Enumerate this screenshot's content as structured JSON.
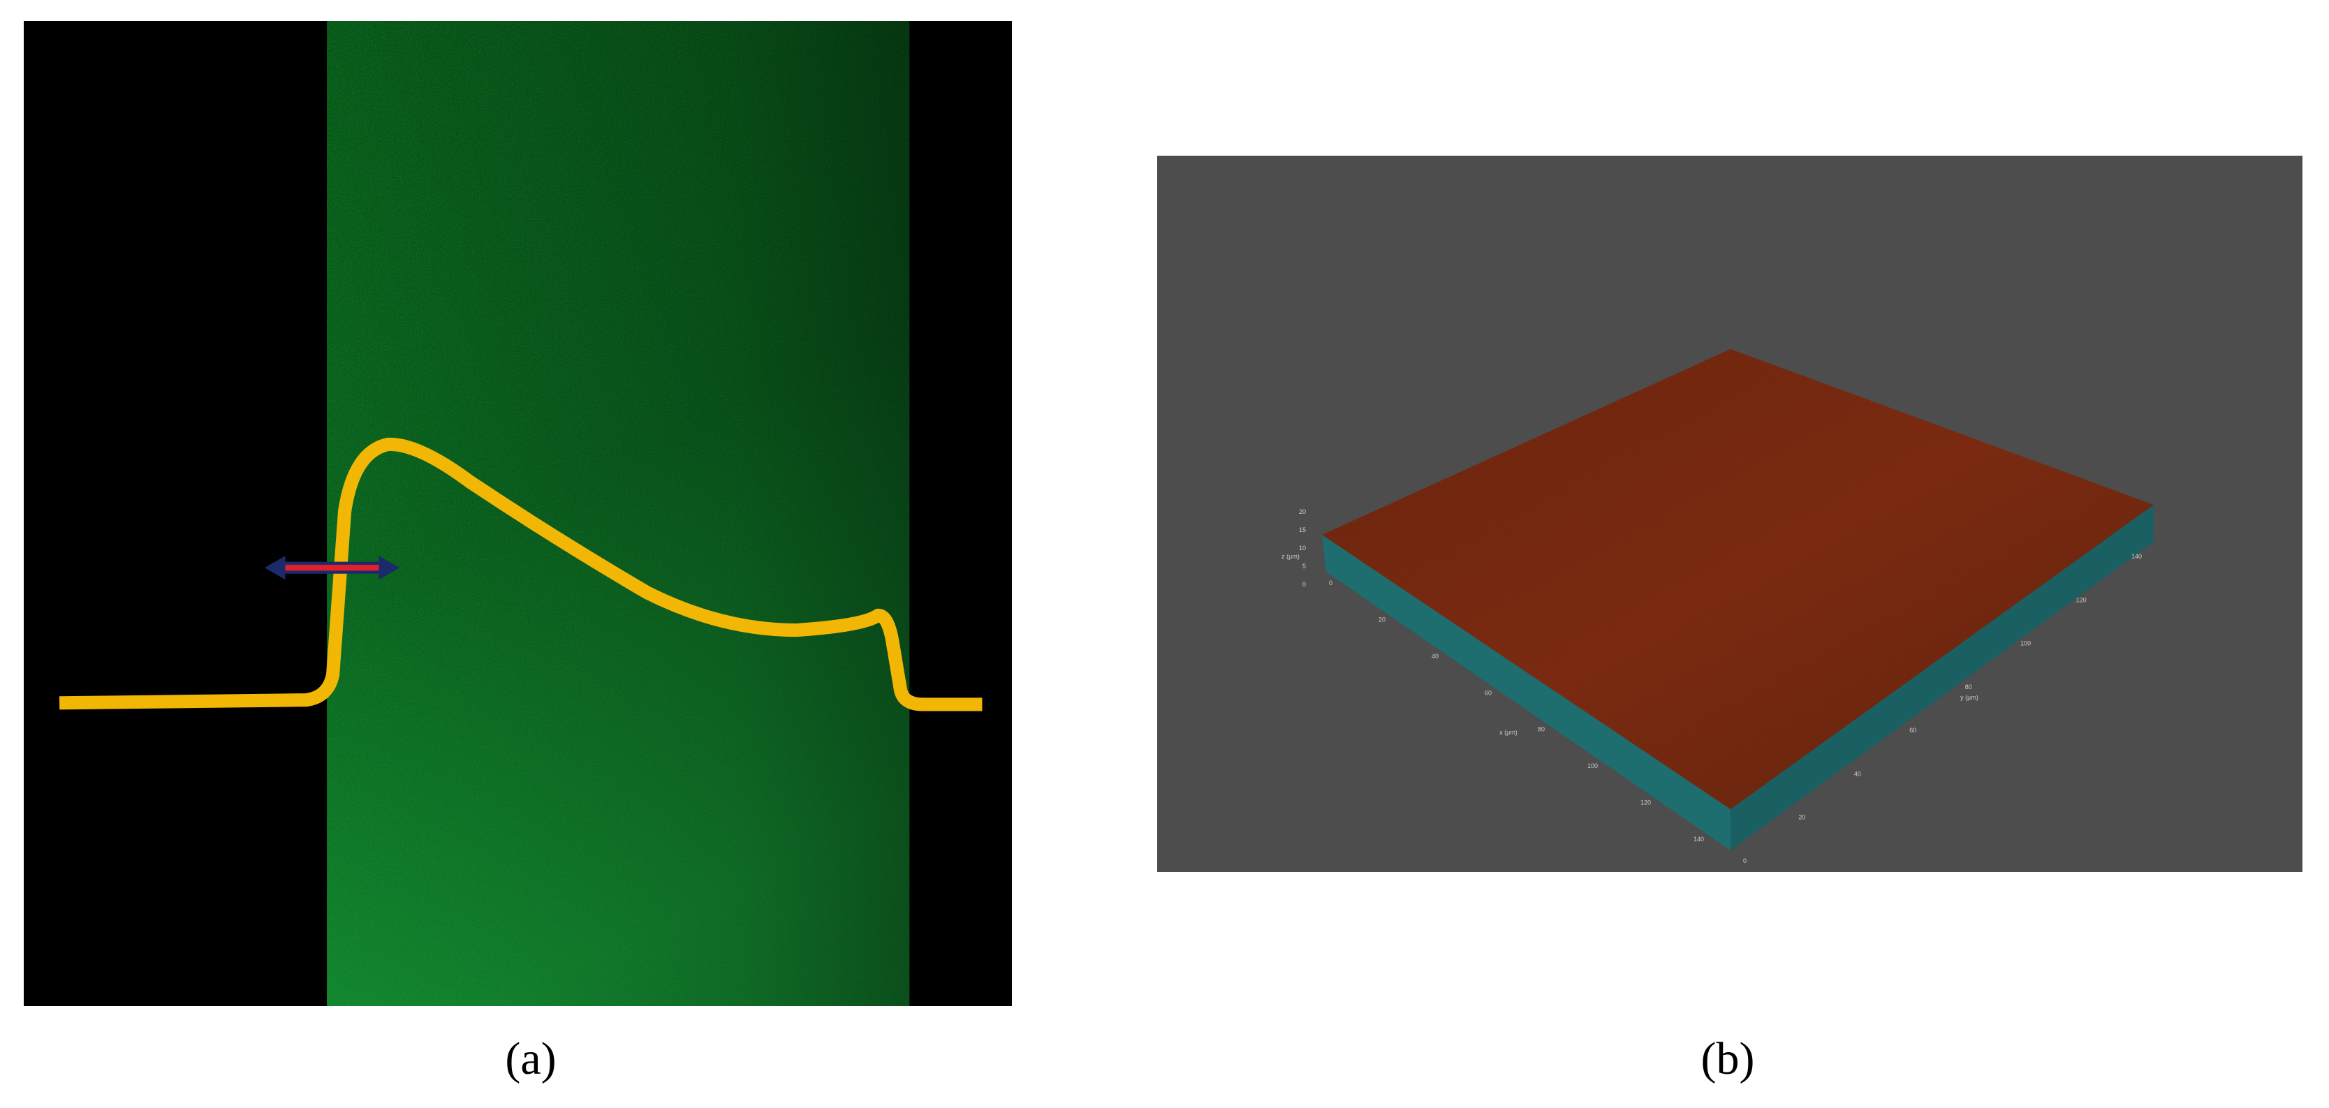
{
  "figure": {
    "panels": [
      {
        "label": "(a)"
      },
      {
        "label": "(b)",
        "axes": {
          "x": {
            "title": "x (µm)",
            "ticks": [
              "0",
              "20",
              "40",
              "60",
              "80",
              "100",
              "120",
              "140"
            ]
          },
          "y": {
            "title": "y (µm)",
            "ticks": [
              "0",
              "20",
              "40",
              "60",
              "80",
              "100",
              "120",
              "140"
            ]
          },
          "z": {
            "title": "z (µm)",
            "ticks": [
              "0",
              "5",
              "10",
              "15",
              "20"
            ]
          }
        }
      }
    ]
  }
}
